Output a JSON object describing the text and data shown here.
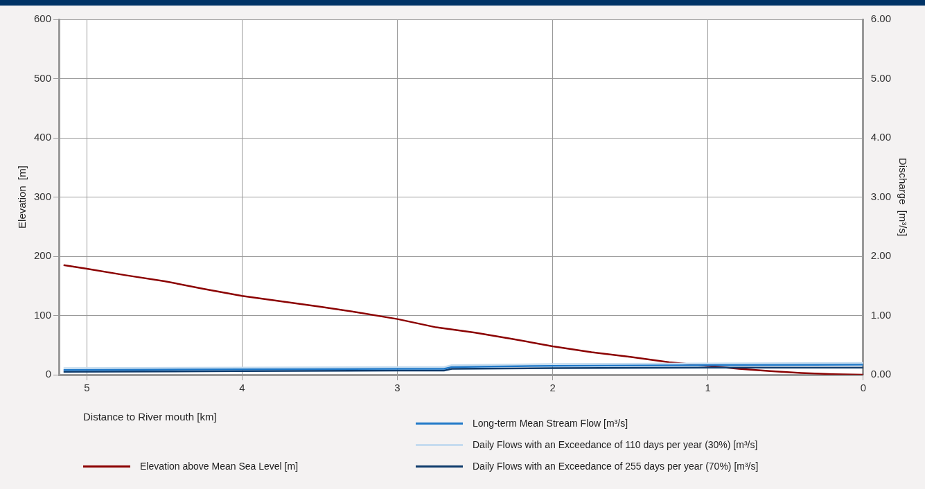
{
  "chart_data": {
    "type": "line",
    "xlabel": "Distance to River mouth  [km]",
    "ylabel": "Elevation  [m]",
    "y2label": "Discharge  [m³/s]",
    "xlim": [
      5.18,
      0
    ],
    "xticks": [
      5,
      4,
      3,
      2,
      1,
      0
    ],
    "ylim": [
      0,
      600
    ],
    "yticks": [
      0,
      100,
      200,
      300,
      400,
      500,
      600
    ],
    "y2lim": [
      0,
      6
    ],
    "y2ticks": [
      {
        "value": 0,
        "label": "0.00"
      },
      {
        "value": 1,
        "label": "1.00"
      },
      {
        "value": 2,
        "label": "2.00"
      },
      {
        "value": 3,
        "label": "3.00"
      },
      {
        "value": 4,
        "label": "4.00"
      },
      {
        "value": 5,
        "label": "5.00"
      },
      {
        "value": 6,
        "label": "6.00"
      }
    ],
    "grid": true,
    "legend": "bottom",
    "marker": "none",
    "line_style": "solid",
    "series": [
      {
        "name": "Elevation above Mean Sea Level  [m]",
        "color": "#8b0000",
        "x": [
          5.15,
          5.0,
          4.75,
          4.5,
          4.25,
          4.0,
          3.75,
          3.5,
          3.25,
          3.0,
          2.75,
          2.5,
          2.25,
          2.0,
          1.75,
          1.5,
          1.25,
          1.0,
          0.8,
          0.6,
          0.4,
          0.2,
          0.0
        ],
        "values": [
          185,
          179,
          168,
          158,
          145,
          133,
          124,
          115,
          105,
          94,
          80,
          71,
          60,
          48,
          38,
          30,
          21,
          15,
          10,
          6,
          3,
          1,
          0
        ]
      },
      {
        "name": "Long-term Mean Stream Flow  [m³/s]",
        "color": "#1f78c8",
        "axis": "y2",
        "x": [
          5.15,
          4.0,
          3.0,
          2.7,
          2.65,
          2.0,
          1.0,
          0.0
        ],
        "values": [
          0.08,
          0.09,
          0.1,
          0.1,
          0.13,
          0.15,
          0.16,
          0.17
        ]
      },
      {
        "name": "Daily Flows with an Exceedance of 110 days per year (30%)  [m³/s]",
        "color": "#c5dcef",
        "axis": "y2",
        "x": [
          5.15,
          4.0,
          3.0,
          2.7,
          2.65,
          2.0,
          1.0,
          0.0
        ],
        "values": [
          0.11,
          0.12,
          0.13,
          0.13,
          0.16,
          0.18,
          0.19,
          0.2
        ]
      },
      {
        "name": "Daily Flows with an Exceedance of 255 days per year (70%)  [m³/s]",
        "color": "#0d3a6b",
        "axis": "y2",
        "x": [
          5.15,
          4.0,
          3.0,
          2.7,
          2.65,
          2.0,
          1.0,
          0.0
        ],
        "values": [
          0.05,
          0.06,
          0.07,
          0.07,
          0.1,
          0.11,
          0.12,
          0.12
        ]
      }
    ]
  }
}
